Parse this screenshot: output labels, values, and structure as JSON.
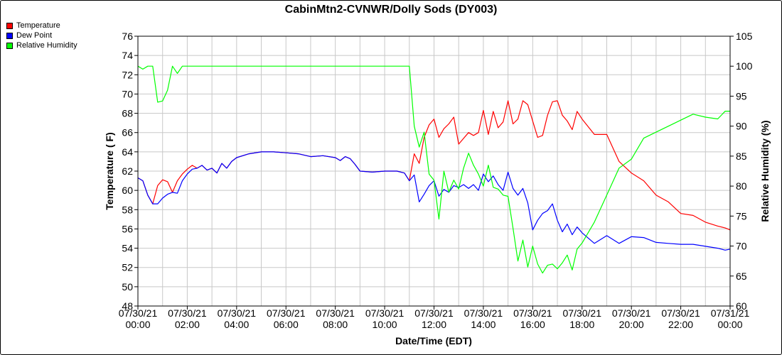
{
  "chart_data": {
    "type": "line",
    "title": "CabinMtn2-CVNWR/Dolly Sods (DY003)",
    "xlabel": "Date/Time (EDT)",
    "ylabel_left": "Temperature ( F)",
    "ylabel_right": "Relative Humidity (%)",
    "y_left_lim": [
      48,
      76
    ],
    "y_right_lim": [
      60,
      105
    ],
    "y_left_ticks": [
      "48",
      "50",
      "52",
      "54",
      "56",
      "58",
      "60",
      "62",
      "64",
      "66",
      "68",
      "70",
      "72",
      "74",
      "76"
    ],
    "y_right_ticks": [
      "60",
      "65",
      "70",
      "75",
      "80",
      "85",
      "90",
      "95",
      "100",
      "105"
    ],
    "x_ticks": [
      {
        "date": "07/30/21",
        "time": "00:00"
      },
      {
        "date": "07/30/21",
        "time": "02:00"
      },
      {
        "date": "07/30/21",
        "time": "04:00"
      },
      {
        "date": "07/30/21",
        "time": "06:00"
      },
      {
        "date": "07/30/21",
        "time": "08:00"
      },
      {
        "date": "07/30/21",
        "time": "10:00"
      },
      {
        "date": "07/30/21",
        "time": "12:00"
      },
      {
        "date": "07/30/21",
        "time": "14:00"
      },
      {
        "date": "07/30/21",
        "time": "16:00"
      },
      {
        "date": "07/30/21",
        "time": "18:00"
      },
      {
        "date": "07/30/21",
        "time": "20:00"
      },
      {
        "date": "07/30/21",
        "time": "22:00"
      },
      {
        "date": "07/31/21",
        "time": "00:00"
      }
    ],
    "grid": true,
    "legend_position": "top-left",
    "series": [
      {
        "name": "Temperature",
        "color": "#ff0000",
        "axis": "left",
        "x_hours": [
          0,
          0.2,
          0.4,
          0.6,
          0.8,
          1.0,
          1.2,
          1.4,
          1.6,
          1.8,
          2.0,
          2.2,
          2.4,
          2.6,
          2.8,
          3.0,
          3.2,
          3.4,
          3.6,
          3.8,
          4.0,
          4.5,
          5.0,
          5.5,
          6.0,
          6.5,
          7.0,
          7.5,
          8.0,
          8.2,
          8.4,
          8.6,
          8.8,
          9.0,
          9.5,
          10.0,
          10.5,
          10.8,
          11.0,
          11.2,
          11.4,
          11.6,
          11.8,
          12.0,
          12.2,
          12.4,
          12.6,
          12.8,
          13.0,
          13.2,
          13.4,
          13.6,
          13.8,
          14.0,
          14.2,
          14.4,
          14.6,
          14.8,
          15.0,
          15.2,
          15.4,
          15.6,
          15.8,
          16.0,
          16.2,
          16.4,
          16.6,
          16.8,
          17.0,
          17.2,
          17.4,
          17.6,
          17.8,
          18.0,
          18.5,
          19.0,
          19.5,
          20.0,
          20.5,
          21.0,
          21.5,
          22.0,
          22.5,
          23.0,
          23.5,
          23.8,
          24.0
        ],
        "values": [
          61.3,
          61.0,
          59.5,
          58.6,
          60.5,
          61.1,
          60.9,
          59.8,
          61.0,
          61.7,
          62.2,
          62.6,
          62.3,
          62.6,
          62.1,
          62.3,
          61.8,
          62.8,
          62.3,
          63.0,
          63.4,
          63.8,
          64.0,
          64.0,
          63.9,
          63.8,
          63.5,
          63.6,
          63.4,
          63.1,
          63.5,
          63.3,
          62.7,
          62.0,
          61.9,
          62.0,
          62.0,
          61.8,
          61.0,
          63.8,
          62.8,
          65.5,
          66.8,
          67.4,
          65.5,
          66.4,
          66.9,
          67.6,
          64.8,
          65.4,
          66.0,
          65.7,
          66.0,
          68.3,
          65.8,
          68.2,
          66.5,
          67.1,
          69.3,
          66.9,
          67.4,
          69.3,
          68.9,
          67.2,
          65.5,
          65.7,
          67.8,
          69.2,
          69.3,
          67.8,
          67.2,
          66.3,
          68.2,
          67.4,
          65.8,
          65.8,
          63.0,
          61.8,
          61.0,
          59.5,
          58.8,
          57.6,
          57.4,
          56.7,
          56.3,
          56.1,
          55.9
        ]
      },
      {
        "name": "Dew Point",
        "color": "#0000ff",
        "axis": "left",
        "x_hours": [
          0,
          0.2,
          0.4,
          0.6,
          0.8,
          1.0,
          1.2,
          1.4,
          1.6,
          1.8,
          2.0,
          2.2,
          2.4,
          2.6,
          2.8,
          3.0,
          3.2,
          3.4,
          3.6,
          3.8,
          4.0,
          4.5,
          5.0,
          5.5,
          6.0,
          6.5,
          7.0,
          7.5,
          8.0,
          8.2,
          8.4,
          8.6,
          8.8,
          9.0,
          9.5,
          10.0,
          10.5,
          10.8,
          11.0,
          11.2,
          11.4,
          11.6,
          11.8,
          12.0,
          12.2,
          12.4,
          12.6,
          12.8,
          13.0,
          13.2,
          13.4,
          13.6,
          13.8,
          14.0,
          14.2,
          14.4,
          14.6,
          14.8,
          15.0,
          15.2,
          15.4,
          15.6,
          15.8,
          16.0,
          16.2,
          16.4,
          16.6,
          16.8,
          17.0,
          17.2,
          17.4,
          17.6,
          17.8,
          18.0,
          18.5,
          19.0,
          19.5,
          20.0,
          20.5,
          21.0,
          21.5,
          22.0,
          22.5,
          23.0,
          23.5,
          23.8,
          24.0
        ],
        "values": [
          61.3,
          61.0,
          59.5,
          58.6,
          58.6,
          59.2,
          59.6,
          59.8,
          59.7,
          61.0,
          61.7,
          62.2,
          62.3,
          62.6,
          62.1,
          62.3,
          61.8,
          62.8,
          62.3,
          63.0,
          63.4,
          63.8,
          64.0,
          64.0,
          63.9,
          63.8,
          63.5,
          63.6,
          63.4,
          63.1,
          63.5,
          63.3,
          62.7,
          62.0,
          61.9,
          62.0,
          62.0,
          61.8,
          61.0,
          61.6,
          58.8,
          59.6,
          60.5,
          61.0,
          59.4,
          60.1,
          59.8,
          60.5,
          60.3,
          60.6,
          60.2,
          60.6,
          60.0,
          61.7,
          60.9,
          61.5,
          60.6,
          60.0,
          61.9,
          60.2,
          59.5,
          60.2,
          58.7,
          55.9,
          56.9,
          57.6,
          57.9,
          58.6,
          56.9,
          55.7,
          56.5,
          55.4,
          56.2,
          55.6,
          54.5,
          55.3,
          54.5,
          55.2,
          55.1,
          54.6,
          54.5,
          54.4,
          54.4,
          54.2,
          54.0,
          53.8,
          53.9
        ]
      },
      {
        "name": "Relative Humidity",
        "color": "#00ff00",
        "axis": "right",
        "x_hours": [
          0,
          0.2,
          0.4,
          0.6,
          0.8,
          1.0,
          1.2,
          1.4,
          1.6,
          1.8,
          2.0,
          3.0,
          4.0,
          5.0,
          6.0,
          7.0,
          8.0,
          9.0,
          10.0,
          11.0,
          11.2,
          11.4,
          11.6,
          11.8,
          12.0,
          12.2,
          12.4,
          12.6,
          12.8,
          13.0,
          13.2,
          13.4,
          13.6,
          13.8,
          14.0,
          14.2,
          14.4,
          14.6,
          14.8,
          15.0,
          15.2,
          15.4,
          15.6,
          15.8,
          16.0,
          16.2,
          16.4,
          16.6,
          16.8,
          17.0,
          17.2,
          17.4,
          17.6,
          17.8,
          18.0,
          18.5,
          19.0,
          19.5,
          20.0,
          20.5,
          21.0,
          21.5,
          22.0,
          22.5,
          23.0,
          23.5,
          23.8,
          24.0
        ],
        "values": [
          100,
          99.5,
          100,
          100,
          94.0,
          94.2,
          96.0,
          100,
          98.8,
          100,
          100,
          100,
          100,
          100,
          100,
          100,
          100,
          100,
          100,
          100,
          90.0,
          86.5,
          89.0,
          82.0,
          81.0,
          74.5,
          82.5,
          79.0,
          81.0,
          79.5,
          83.0,
          85.5,
          83.5,
          82.0,
          80.0,
          83.5,
          79.8,
          79.5,
          78.5,
          78.3,
          73.0,
          67.5,
          71.0,
          66.5,
          70.0,
          67.0,
          65.5,
          66.8,
          67.0,
          66.2,
          67.2,
          68.5,
          66.0,
          69.5,
          70.5,
          74.0,
          78.5,
          83.0,
          84.5,
          88.0,
          89.0,
          90.0,
          91.0,
          92.0,
          91.5,
          91.2,
          92.5,
          92.5
        ]
      }
    ]
  }
}
